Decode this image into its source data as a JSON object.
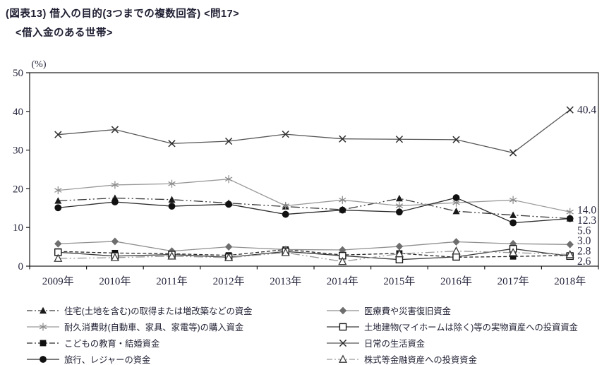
{
  "title": "(図表13) 借入の目的(3つまでの複数回答) <問17>",
  "subtitle": "<借入金のある世帯>",
  "chart_data": {
    "type": "line",
    "unit_label": "(%)",
    "title": "借入の目的(3つまでの複数回答)",
    "x_labels": [
      "2009年",
      "2010年",
      "2011年",
      "2012年",
      "2013年",
      "2014年",
      "2015年",
      "2016年",
      "2017年",
      "2018年"
    ],
    "ylim": [
      0,
      50
    ],
    "yticks": [
      0,
      10,
      20,
      30,
      40,
      50
    ],
    "grid": false,
    "legend_position": "bottom-two-columns",
    "series": [
      {
        "id": "housing",
        "name": "住宅(土地を含む)の取得または増改築などの資金",
        "marker": "triangle-filled",
        "line": "dashdotdot",
        "color": "#1a1a1a",
        "line_color": "#3a3a3a",
        "values": [
          16.9,
          17.6,
          17.2,
          16.3,
          15.4,
          14.6,
          17.5,
          14.2,
          13.2,
          12.3
        ],
        "end_label": null
      },
      {
        "id": "durables",
        "name": "耐久消費財(自動車、家具、家電等)の購入資金",
        "marker": "asterisk",
        "line": "solid",
        "color": "#8c8c8c",
        "line_color": "#9a9a9a",
        "values": [
          19.6,
          21.0,
          21.3,
          22.5,
          15.6,
          17.1,
          15.6,
          16.4,
          17.1,
          14.0
        ],
        "end_label": "14.0"
      },
      {
        "id": "education",
        "name": "こどもの教育・結婚資金",
        "marker": "square-filled",
        "line": "dashed",
        "color": "#111111",
        "line_color": "#2b2b2b",
        "values": [
          3.8,
          3.4,
          3.2,
          2.8,
          4.3,
          2.9,
          3.3,
          2.3,
          2.5,
          2.8
        ],
        "end_label": "2.8"
      },
      {
        "id": "travel",
        "name": "旅行、レジャーの資金",
        "marker": "circle-filled",
        "line": "solid",
        "color": "#111111",
        "line_color": "#2b2b2b",
        "values": [
          15.1,
          16.6,
          15.5,
          16.0,
          13.4,
          14.5,
          14.0,
          17.7,
          11.2,
          12.3
        ],
        "end_label": "12.3"
      },
      {
        "id": "medical",
        "name": "医療費や災害復旧資金",
        "marker": "diamond-filled",
        "line": "solid",
        "color": "#6e6e6e",
        "line_color": "#8f8f8f",
        "values": [
          5.8,
          6.4,
          3.9,
          5.0,
          4.3,
          4.2,
          5.1,
          6.3,
          5.8,
          5.6
        ],
        "end_label": "5.6"
      },
      {
        "id": "realestate",
        "name": "土地建物(マイホームは除く)等の実物資産への投資資金",
        "marker": "square-open",
        "line": "solid",
        "color": "#1a1a1a",
        "line_color": "#3a3a3a",
        "values": [
          3.6,
          2.6,
          3.0,
          2.3,
          3.8,
          2.7,
          1.7,
          2.4,
          4.5,
          2.6
        ],
        "end_label": "2.6"
      },
      {
        "id": "living",
        "name": "日常の生活資金",
        "marker": "x-cross",
        "line": "solid",
        "color": "#2b2b2b",
        "line_color": "#565656",
        "values": [
          34.0,
          35.3,
          31.7,
          32.3,
          34.1,
          32.9,
          32.8,
          32.7,
          29.3,
          40.4
        ],
        "end_label": "40.4"
      },
      {
        "id": "securities",
        "name": "株式等金融資産への投資資金",
        "marker": "triangle-open",
        "line": "dashdotdot",
        "color": "#3a3a3a",
        "line_color": "#9a9a9a",
        "values": [
          2.0,
          2.2,
          2.6,
          2.2,
          3.5,
          1.2,
          3.2,
          3.9,
          3.5,
          3.0
        ],
        "end_label": "3.0"
      }
    ],
    "legend_columns": {
      "left": [
        "housing",
        "durables",
        "education",
        "travel"
      ],
      "right": [
        "medical",
        "realestate",
        "living",
        "securities"
      ]
    }
  }
}
